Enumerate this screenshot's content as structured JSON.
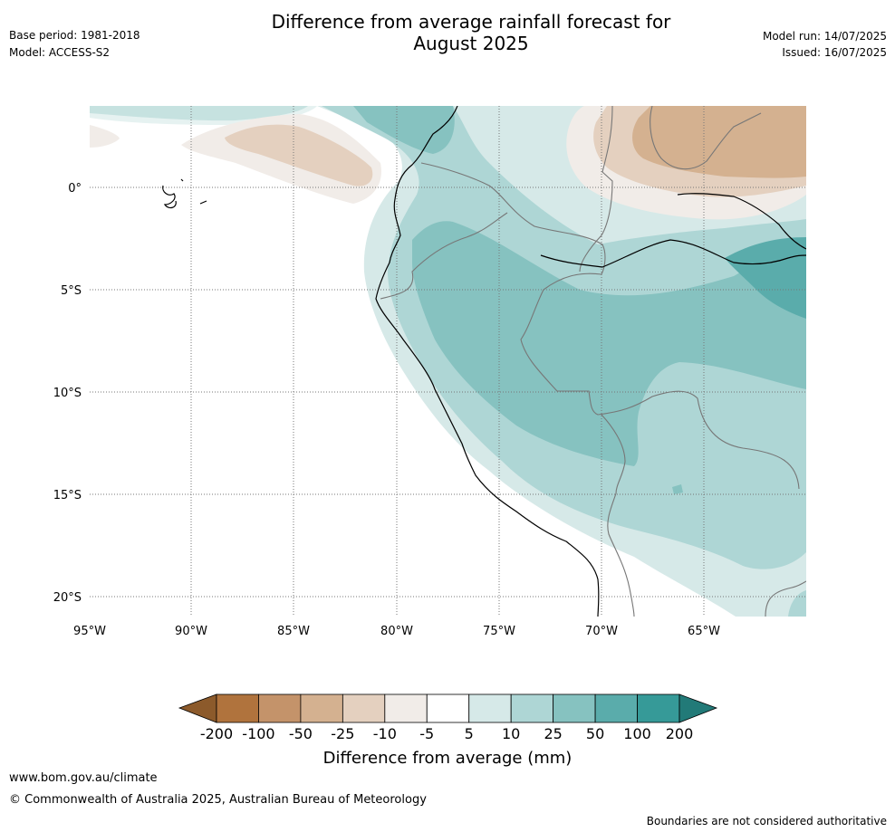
{
  "header": {
    "title_line1": "Difference from average rainfall forecast for",
    "title_line2": "August 2025",
    "base_period": "Base period: 1981-2018",
    "model": "Model: ACCESS-S2",
    "model_run": "Model run: 14/07/2025",
    "issued": "Issued: 16/07/2025"
  },
  "map": {
    "lat_labels": [
      "0°",
      "5°S",
      "10°S",
      "15°S",
      "20°S"
    ],
    "lon_labels": [
      "95°W",
      "90°W",
      "85°W",
      "80°W",
      "75°W",
      "70°W",
      "65°W"
    ]
  },
  "colorbar": {
    "title": "Difference from average (mm)",
    "ticks": [
      "-200",
      "-100",
      "-50",
      "-25",
      "-10",
      "-5",
      "5",
      "10",
      "25",
      "50",
      "100",
      "200"
    ],
    "colors": [
      "#8c5a2b",
      "#b0733d",
      "#c4936a",
      "#d4b190",
      "#e4d0bf",
      "#f1ece8",
      "#ffffff",
      "#d6e9e8",
      "#aed6d5",
      "#86c2c0",
      "#5aacab",
      "#369a98",
      "#227a78"
    ]
  },
  "footer": {
    "url": "www.bom.gov.au/climate",
    "copyright": "© Commonwealth of Australia 2025, Australian Bureau of Meteorology",
    "disclaimer": "Boundaries are not considered authoritative"
  }
}
